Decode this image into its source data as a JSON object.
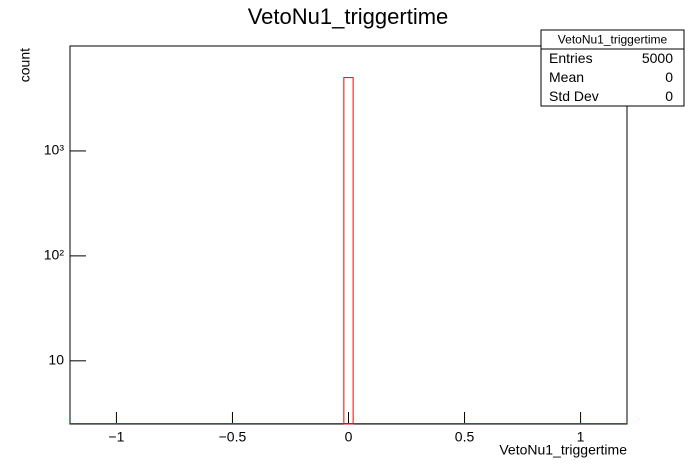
{
  "chart_data": {
    "type": "histogram",
    "title": "VetoNu1_triggertime",
    "x_label": "VetoNu1_triggertime",
    "y_label": "count",
    "bins": [
      -0.02,
      0.02
    ],
    "counts": [
      5000
    ],
    "color": "#ff0000",
    "xlim": [
      -1.2,
      1.2
    ],
    "xticks": [
      {
        "value": -1,
        "label": "−1"
      },
      {
        "value": -0.5,
        "label": "−0.5"
      },
      0,
      0.5,
      1
    ],
    "ylim": [
      2.5,
      10000
    ],
    "log_y": true,
    "yticks": [
      10,
      {
        "value": 100,
        "label": "10²"
      },
      {
        "value": 1000,
        "label": "10³"
      }
    ],
    "stats": {
      "title": "VetoNu1_triggertime",
      "rows": [
        [
          "Entries",
          "5000"
        ],
        [
          "Mean",
          "0"
        ],
        [
          "Std Dev",
          "0"
        ]
      ]
    }
  }
}
